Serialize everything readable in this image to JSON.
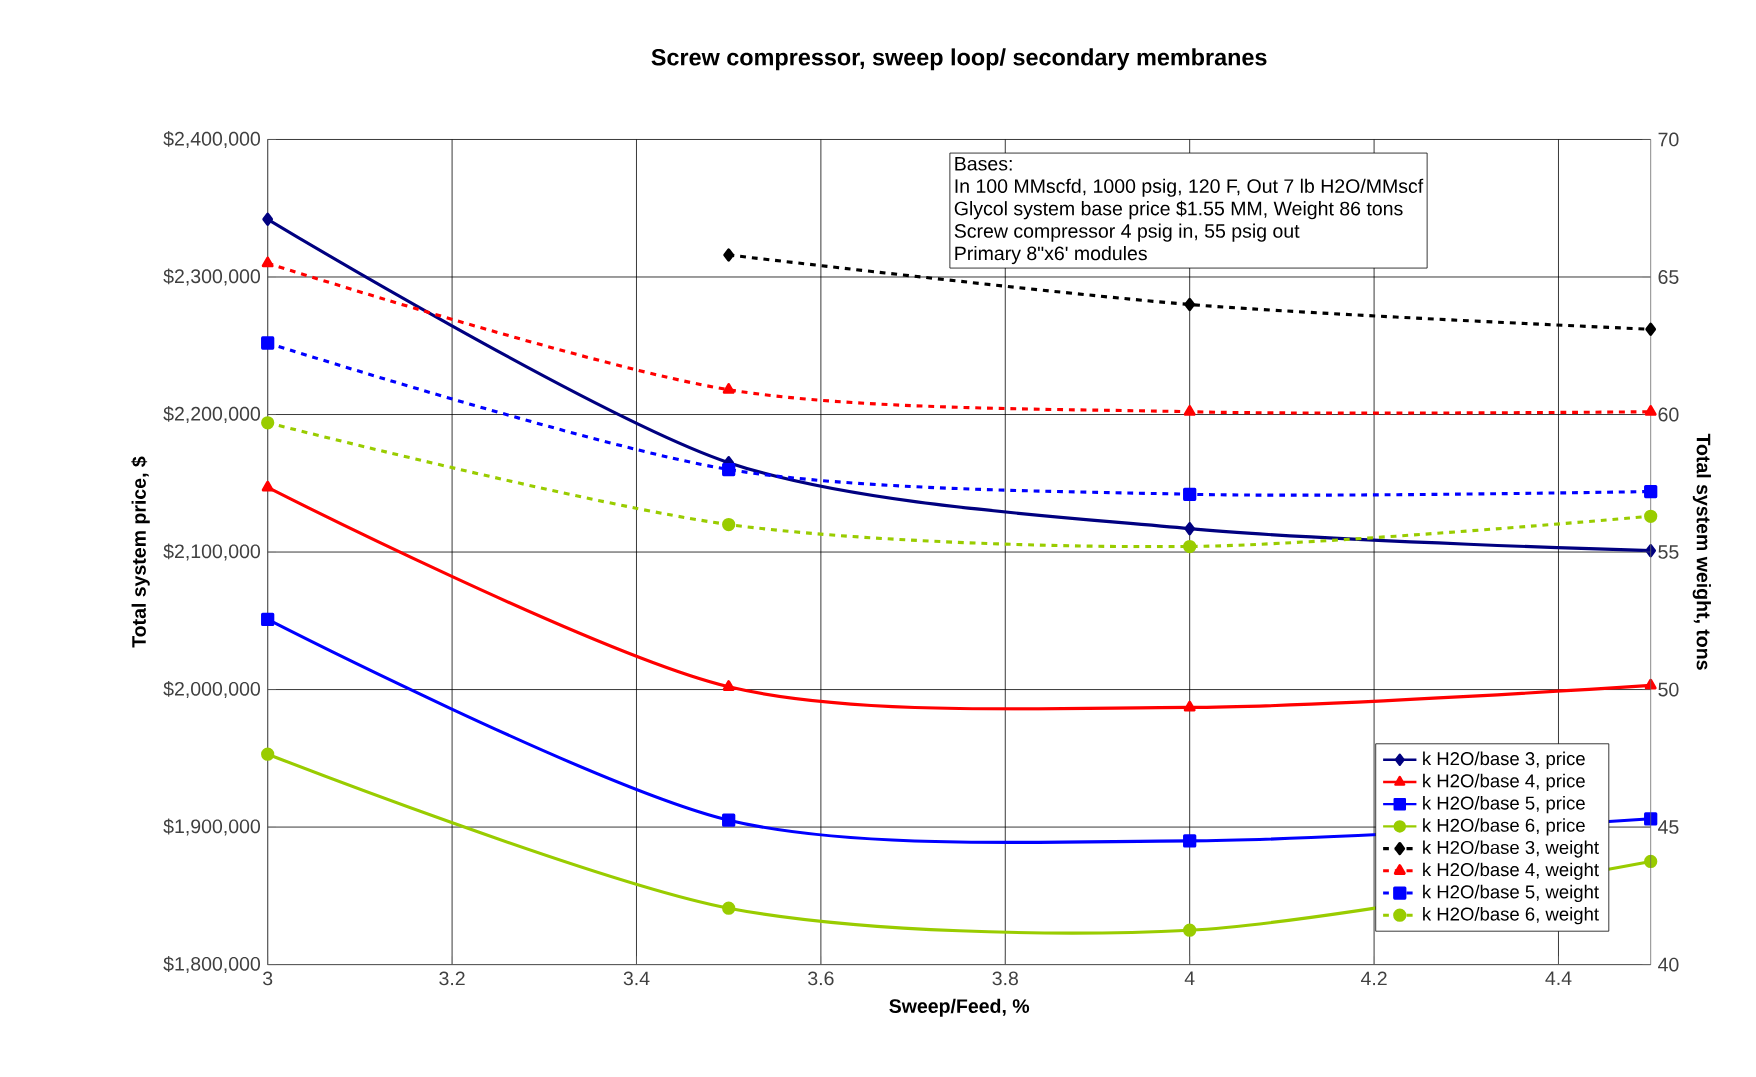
{
  "chart_data": {
    "type": "line",
    "title": "Screw compressor, sweep loop/ secondary membranes",
    "xlabel": "Sweep/Feed, %",
    "ylabel": "Total system price, $",
    "y2label": "Total system weight, tons",
    "x": [
      3,
      3.5,
      4,
      4.5
    ],
    "xlim": [
      3,
      4.5
    ],
    "xticks": [
      3,
      3.2,
      3.4,
      3.6,
      3.8,
      4,
      4.2,
      4.4
    ],
    "ylim": [
      1800000,
      2400000
    ],
    "yticks": [
      {
        "value": 1800000,
        "label": "$1,800,000"
      },
      {
        "value": 1900000,
        "label": "$1,900,000"
      },
      {
        "value": 2000000,
        "label": "$2,000,000"
      },
      {
        "value": 2100000,
        "label": "$2,100,000"
      },
      {
        "value": 2200000,
        "label": "$2,200,000"
      },
      {
        "value": 2300000,
        "label": "$2,300,000"
      },
      {
        "value": 2400000,
        "label": "$2,400,000"
      }
    ],
    "y2lim": [
      40,
      70
    ],
    "y2ticks": [
      40,
      45,
      50,
      55,
      60,
      65,
      70
    ],
    "grid": true,
    "legend": "bottom right",
    "annotations": [
      "Bases:",
      "In 100  MMscfd, 1000 psig, 120 F,  Out 7 lb H2O/MMscf",
      "Glycol system base price  $1.55  MM, Weight  86  tons",
      "Screw compressor 4 psig in, 55  psig out",
      "Primary 8\"x6' modules"
    ],
    "series": [
      {
        "name": "k H2O/base 3, price",
        "color": "#000080",
        "marker": "diamond",
        "line_style": "solid",
        "values": [
          2342000,
          2165000,
          2117000,
          2101000
        ]
      },
      {
        "name": "k H2O/base 4, price",
        "color": "#ff0000",
        "marker": "triangle",
        "line_style": "solid",
        "values": [
          2147000,
          2002000,
          1987000,
          2003000
        ]
      },
      {
        "name": "k H2O/base 5, price",
        "color": "#0000ff",
        "marker": "square",
        "line_style": "solid",
        "values": [
          2051000,
          1905000,
          1890000,
          1906000
        ]
      },
      {
        "name": "k H2O/base 6, price",
        "color": "#99cc00",
        "marker": "circle",
        "line_style": "solid",
        "values": [
          1953000,
          1841000,
          1825000,
          1875000
        ]
      },
      {
        "name": "k H2O/base 3, weight",
        "color": "#000000",
        "marker": "diamond",
        "line_style": "dashed",
        "axis": "y2",
        "values": [
          null,
          65.8,
          64.0,
          63.1
        ]
      },
      {
        "name": "k H2O/base 4, weight",
        "color": "#ff0000",
        "marker": "triangle",
        "line_style": "dashed",
        "axis": "y2",
        "values": [
          65.5,
          60.9,
          60.1,
          60.1
        ]
      },
      {
        "name": "k H2O/base 5, weight",
        "color": "#0000ff",
        "marker": "square",
        "line_style": "dashed",
        "axis": "y2",
        "values": [
          62.6,
          58.0,
          57.1,
          57.2
        ]
      },
      {
        "name": "k H2O/base 6, weight",
        "color": "#99cc00",
        "marker": "circle",
        "line_style": "dashed",
        "axis": "y2",
        "values": [
          59.7,
          56.0,
          55.2,
          56.3
        ]
      }
    ]
  }
}
